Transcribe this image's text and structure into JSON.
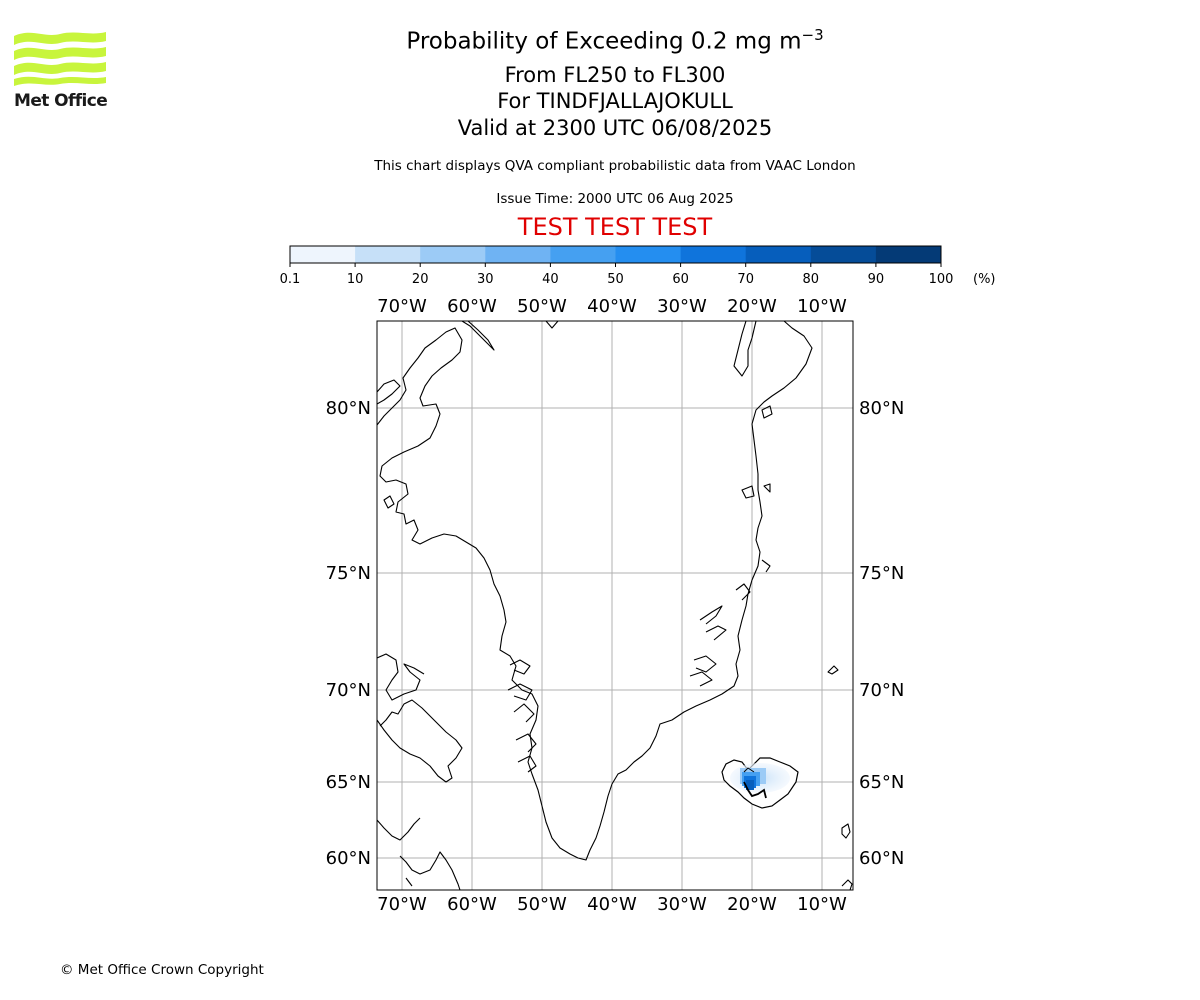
{
  "header": {
    "title_main": "Probability of Exceeding 0.2 mg m",
    "title_unit_exp": "−3",
    "flight_levels": "From FL250 to FL300",
    "volcano": "For TINDFJALLAJOKULL",
    "valid_time": "Valid at 2300 UTC 06/08/2025",
    "subtitle": "This chart displays QVA compliant probabilistic data from VAAC London",
    "issue_time": "Issue Time: 2000 UTC 06 Aug 2025",
    "test_banner": "TEST TEST TEST",
    "test_color": "#e00000"
  },
  "logo": {
    "name": "Met Office",
    "icon": "met-office-wave-logo",
    "color": "#c8f53c"
  },
  "colorbar": {
    "unit": "(%)",
    "ticks": [
      "0.1",
      "10",
      "20",
      "30",
      "40",
      "50",
      "60",
      "70",
      "80",
      "90",
      "100"
    ],
    "colors": [
      "#eef5fd",
      "#c6e0f8",
      "#9ccbf6",
      "#6fb3f3",
      "#45a0f1",
      "#248ef0",
      "#0f74dc",
      "#065ebc",
      "#054c98",
      "#043a76",
      "#022954"
    ]
  },
  "map": {
    "lon_labels": [
      "70°W",
      "60°W",
      "50°W",
      "40°W",
      "30°W",
      "20°W",
      "10°W"
    ],
    "lat_labels": [
      "80°N",
      "75°N",
      "70°N",
      "65°N",
      "60°N"
    ],
    "grid": true,
    "plume": {
      "location": "south-west Iceland",
      "max_probability_band": "70-80"
    }
  },
  "footer": {
    "copyright": "© Met Office Crown Copyright"
  }
}
